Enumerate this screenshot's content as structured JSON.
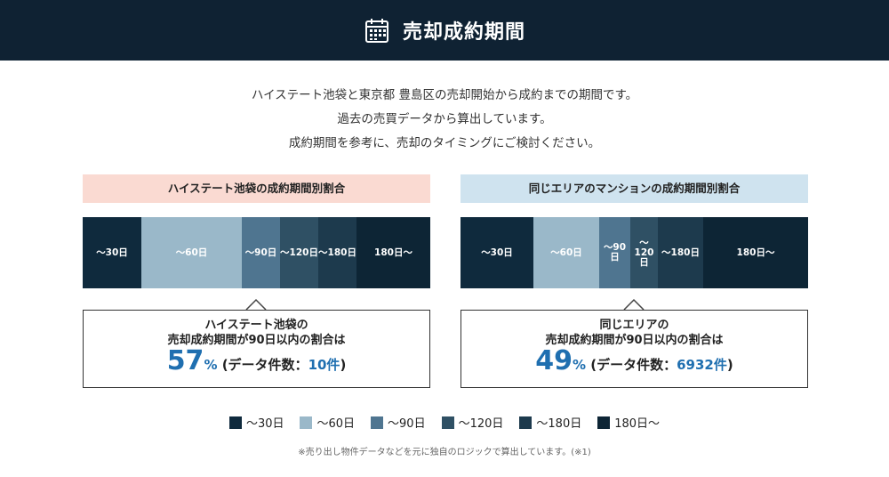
{
  "header": {
    "title": "売却成約期間",
    "icon": "calendar-icon"
  },
  "intro": {
    "lines": [
      "ハイステート池袋と東京都 豊島区の売却開始から成約までの期間です。",
      "過去の売買データから算出しています。",
      "成約期間を参考に、売却のタイミングにご検討ください。"
    ]
  },
  "colors": {
    "d30": "#0f2a3d",
    "d60": "#9ab8c9",
    "d90": "#4f7590",
    "d120": "#2f5064",
    "d180": "#1d3a4d",
    "d180plus": "#0d2535",
    "accent": "#1f6fb0"
  },
  "panels": {
    "left": {
      "title": "ハイステート池袋の成約期間別割合",
      "segments": [
        {
          "label": "〜30日",
          "share": 0.17,
          "color_key": "d30"
        },
        {
          "label": "〜60日",
          "share": 0.29,
          "color_key": "d60"
        },
        {
          "label": "〜90日",
          "share": 0.11,
          "color_key": "d90"
        },
        {
          "label": "〜120日",
          "share": 0.11,
          "color_key": "d120"
        },
        {
          "label": "〜180日",
          "share": 0.11,
          "color_key": "d180"
        },
        {
          "label": "180日〜",
          "share": 0.21,
          "color_key": "d180plus"
        }
      ],
      "summary": {
        "line1": "ハイステート池袋の",
        "line2": "売却成約期間が90日以内の割合は",
        "percent": "57",
        "percent_sign": "%",
        "count_prefix": " (データ件数：",
        "count": "10件",
        "count_suffix": ")"
      }
    },
    "right": {
      "title": "同じエリアのマンションの成約期間別割合",
      "segments": [
        {
          "label": "〜30日",
          "share": 0.21,
          "color_key": "d30"
        },
        {
          "label": "〜60日",
          "share": 0.19,
          "color_key": "d60"
        },
        {
          "label": "〜90日",
          "share": 0.09,
          "color_key": "d90"
        },
        {
          "label": "〜120日",
          "share": 0.08,
          "color_key": "d120"
        },
        {
          "label": "〜180日",
          "share": 0.13,
          "color_key": "d180"
        },
        {
          "label": "180日〜",
          "share": 0.3,
          "color_key": "d180plus"
        }
      ],
      "summary": {
        "line1": "同じエリアの",
        "line2": "売却成約期間が90日以内の割合は",
        "percent": "49",
        "percent_sign": "%",
        "count_prefix": " (データ件数：",
        "count": "6932件",
        "count_suffix": ")"
      }
    }
  },
  "legend": [
    {
      "label": "〜30日",
      "color_key": "d30"
    },
    {
      "label": "〜60日",
      "color_key": "d60"
    },
    {
      "label": "〜90日",
      "color_key": "d90"
    },
    {
      "label": "〜120日",
      "color_key": "d120"
    },
    {
      "label": "〜180日",
      "color_key": "d180"
    },
    {
      "label": "180日〜",
      "color_key": "d180plus"
    }
  ],
  "footnote": "※売り出し物件データなどを元に独自のロジックで算出しています。(※1)"
}
